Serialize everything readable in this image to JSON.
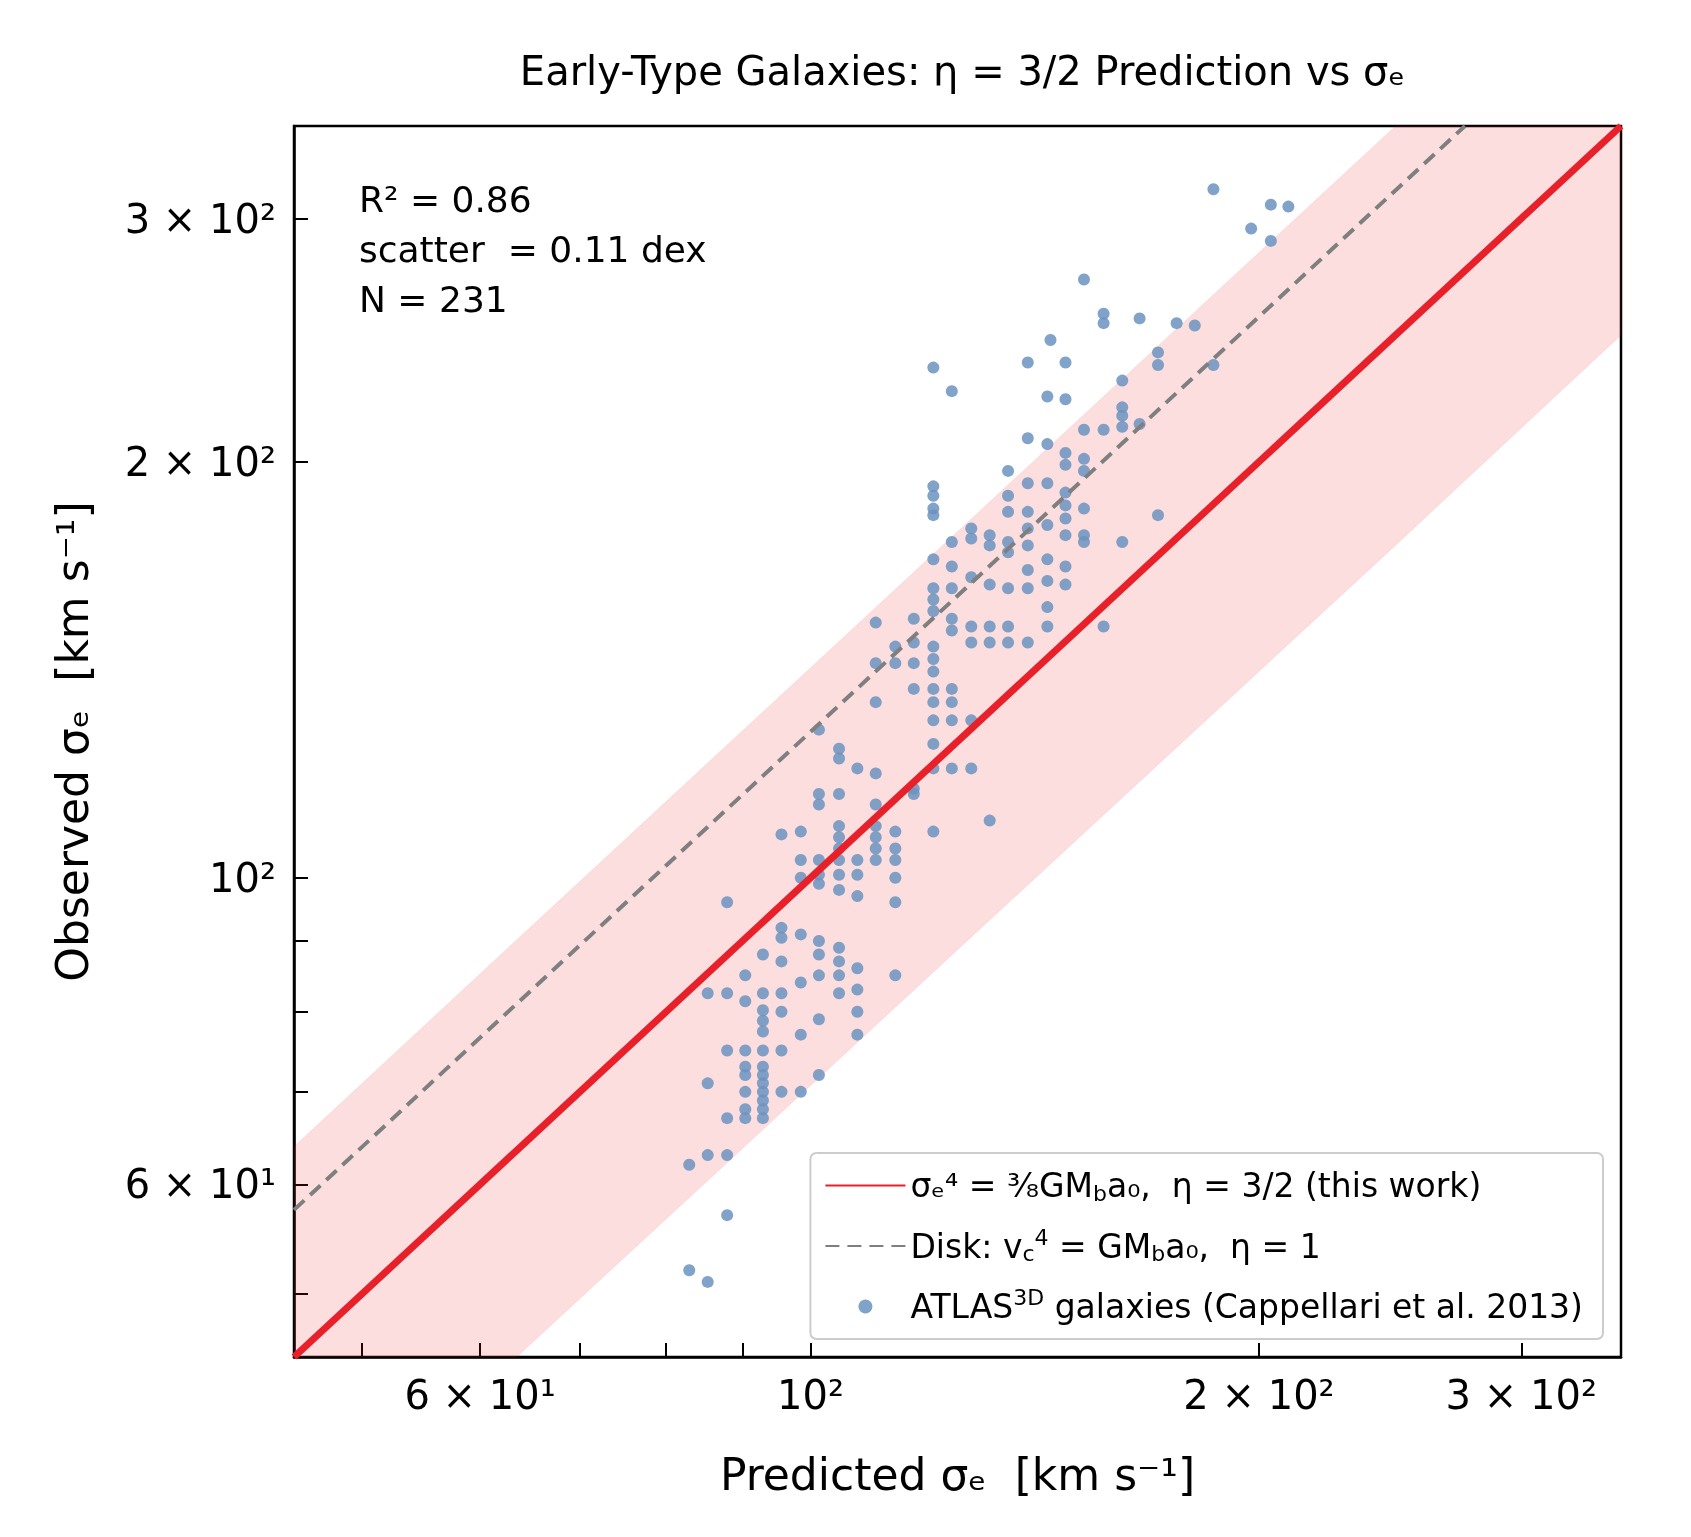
{
  "chart_data": {
    "type": "scatter",
    "title": "Early-Type Galaxies: η = 3/2 Prediction vs σₑ",
    "xlabel": "Predicted σₑ  [km s⁻¹]",
    "ylabel": "Observed σₑ  [km s⁻¹]",
    "log": "xy",
    "grid": false,
    "legend": "bottom right",
    "xlim": [
      45,
      350
    ],
    "ylim": [
      45,
      350
    ],
    "xticks": [
      {
        "value": 50,
        "label": null
      },
      {
        "value": 60,
        "label": "6 × 10¹"
      },
      {
        "value": 70,
        "label": null
      },
      {
        "value": 80,
        "label": null
      },
      {
        "value": 90,
        "label": null
      },
      {
        "value": 100,
        "label": "10²"
      },
      {
        "value": 200,
        "label": "2 × 10²"
      },
      {
        "value": 300,
        "label": "3 × 10²"
      }
    ],
    "yticks": [
      {
        "value": 50,
        "label": null
      },
      {
        "value": 60,
        "label": "6 × 10¹"
      },
      {
        "value": 70,
        "label": null
      },
      {
        "value": 80,
        "label": null
      },
      {
        "value": 90,
        "label": null
      },
      {
        "value": 100,
        "label": "10²"
      },
      {
        "value": 200,
        "label": "2 × 10²"
      },
      {
        "value": 300,
        "label": "3 × 10²"
      }
    ],
    "annotations": [
      "R² = 0.86",
      "scatter  = 0.11 dex",
      "N = 231"
    ],
    "series": [
      {
        "name": "σₑ⁴ = ³⁄₈GM$_{b}$a₀,  η = 3/2 (this work)",
        "type": "line",
        "color": "#e8202a",
        "line_style": "solid",
        "marker": "none",
        "x": [
          45,
          63.5,
          247,
          350
        ],
        "values": [
          45,
          63.5,
          247,
          350
        ],
        "lower": [
          45,
          45,
          174,
          247
        ],
        "upper": [
          63.9,
          90.2,
          350,
          350
        ]
      },
      {
        "name": "Disk: v$_{c}$$^{4}$ = GM$_{b}$a₀,  η = 1",
        "type": "line",
        "color": "#7f7f7f",
        "line_style": "dashed",
        "marker": "none",
        "x": [
          45,
          275
        ],
        "values": [
          57.5,
          350
        ]
      },
      {
        "name": "ATLAS$^{3D}$ galaxies (Cappellari et al. 2013)",
        "color": "#6b93bf",
        "marker": "circle",
        "x": [
          186.4,
          203.7,
          209.3,
          197.6,
          203.7,
          152.6,
          157.3,
          157.3,
          166.3,
          144.9,
          176.1,
          181.1,
          120.9,
          124.4,
          139.9,
          148.3,
          144.2,
          148.3,
          161.9,
          171.1,
          171.1,
          186.4,
          152.6,
          157.3,
          161.9,
          166.3,
          161.9,
          161.9,
          144.2,
          139.9,
          148.3,
          148.3,
          152.6,
          152.6,
          135.7,
          139.9,
          144.2,
          120.9,
          120.9,
          120.9,
          120.9,
          148.3,
          148.3,
          152.6,
          148.3,
          124.4,
          128.2,
          128.2,
          131.9,
          135.7,
          135.7,
          139.9,
          139.9,
          139.9,
          144.2,
          148.3,
          152.6,
          152.6,
          161.9,
          171.1,
          148.3,
          148.3,
          144.2,
          144.2,
          135.7,
          131.9,
          135.7,
          120.9,
          120.9,
          120.9,
          124.4,
          128.2,
          131.9,
          135.7,
          139.9,
          139.9,
          144.2,
          124.4,
          124.4,
          124.4,
          120.9,
          117.3,
          128.2,
          128.2,
          131.9,
          131.9,
          135.7,
          135.7,
          139.9,
          144.2,
          157.3,
          110.6,
          114.0,
          117.3,
          120.9,
          120.9,
          110.6,
          114.0,
          117.3,
          117.3,
          120.9,
          120.9,
          124.4,
          110.6,
          120.9,
          124.4,
          120.9,
          120.9,
          124.4,
          128.2,
          101.3,
          104.5,
          104.5,
          107.5,
          110.6,
          117.3,
          117.3,
          120.9,
          124.4,
          128.2,
          120.9,
          131.9,
          101.3,
          104.5,
          101.3,
          110.6,
          95.6,
          98.5,
          104.5,
          104.5,
          104.5,
          110.6,
          110.6,
          110.6,
          114.0,
          114.0,
          98.5,
          101.3,
          104.5,
          107.5,
          98.5,
          101.3,
          104.5,
          107.5,
          110.6,
          114.0,
          114.0,
          114.0,
          104.5,
          107.5,
          101.3,
          87.9,
          95.6,
          95.6,
          98.5,
          101.3,
          104.5,
          101.3,
          104.5,
          107.5,
          92.9,
          95.6,
          98.5,
          90.4,
          101.3,
          104.5,
          114.0,
          107.5,
          92.9,
          95.6,
          87.9,
          85.3,
          90.4,
          92.9,
          95.6,
          104.5,
          101.3,
          107.5,
          107.5,
          92.9,
          92.9,
          98.5,
          87.9,
          90.4,
          92.9,
          95.6,
          90.4,
          92.9,
          92.9,
          90.4,
          101.3,
          92.9,
          92.9,
          95.6,
          98.5,
          85.3,
          90.4,
          92.9,
          92.9,
          90.4,
          87.9,
          90.4,
          92.9,
          82.9,
          85.3,
          87.9,
          87.9,
          82.9,
          85.3
        ],
        "values": [
          315,
          307,
          306,
          295,
          289,
          271,
          256,
          252,
          254,
          245,
          252,
          251,
          234,
          225,
          236,
          236,
          223,
          222,
          229,
          240,
          235,
          235,
          211,
          211,
          212,
          213,
          219,
          216,
          206,
          208,
          203,
          199,
          201,
          197,
          197,
          193,
          193,
          192,
          189,
          185,
          183,
          190,
          186,
          185,
          182,
          175,
          179,
          176,
          177,
          189,
          184,
          184,
          179,
          174,
          180,
          177,
          177,
          175,
          175,
          183,
          168,
          163,
          170,
          164,
          172,
          174,
          175,
          170,
          162,
          159,
          168,
          165,
          163,
          162,
          167,
          162,
          157,
          162,
          154,
          151,
          156,
          154,
          152,
          148,
          152,
          148,
          152,
          148,
          148,
          152,
          152,
          153,
          147,
          148,
          147,
          144,
          143,
          143,
          143,
          137,
          141,
          137,
          137,
          134,
          134,
          134,
          130,
          125,
          130,
          130,
          128,
          124,
          122,
          120,
          119,
          116,
          115,
          120,
          120,
          120,
          108,
          110,
          115,
          115,
          113,
          113,
          107.5,
          108,
          109,
          107,
          105,
          109,
          107,
          105,
          108,
          105,
          103,
          103,
          103,
          103,
          100,
          100.5,
          100.5,
          100.5,
          103,
          103,
          100,
          96,
          98,
          97,
          99,
          96,
          92,
          90.5,
          91,
          90,
          89,
          88,
          87,
          86,
          88,
          87,
          84,
          85,
          85,
          85,
          85,
          83,
          82.5,
          82.5,
          82.5,
          82.5,
          81.4,
          80.2,
          80,
          82.5,
          79,
          80,
          77,
          78.8,
          77.4,
          77,
          75,
          75,
          75,
          75,
          73,
          73,
          72,
          72,
          72,
          71,
          70,
          70,
          70,
          71,
          70,
          69,
          68,
          68,
          67,
          67,
          67,
          62,
          63,
          63,
          57,
          52,
          51
        ]
      }
    ]
  }
}
